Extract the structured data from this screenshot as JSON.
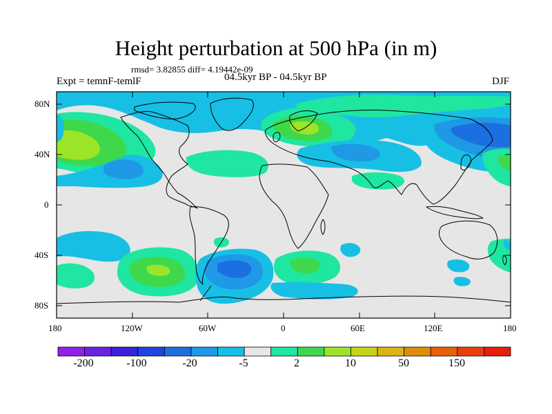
{
  "title": "Height perturbation at 500 hPa (in m)",
  "stats": "rmsd= 3.82855 diff= 4.19442e-09",
  "experiment": "Expt = temnF-temlF",
  "period": "04.5kyr BP - 04.5kyr BP",
  "season": "DJF",
  "y_ticks": [
    "80N",
    "40N",
    "0",
    "40S",
    "80S"
  ],
  "x_ticks": [
    "180",
    "120W",
    "60W",
    "0",
    "60E",
    "120E",
    "180"
  ],
  "colorbar": {
    "labels": [
      "-200",
      "-100",
      "-20",
      "-5",
      "2",
      "10",
      "50",
      "150"
    ],
    "colors": [
      "#8f22e8",
      "#6a22e0",
      "#3a22d8",
      "#1f44e0",
      "#1c6fe0",
      "#1f98e6",
      "#18bfe4",
      "#e6e6e6",
      "#1fe6a0",
      "#3ed84a",
      "#9ce428",
      "#c8d21a",
      "#d9b414",
      "#e08c0c",
      "#e6620a",
      "#e8400a",
      "#e81e0e"
    ]
  },
  "palette": {
    "land_line": "#000000",
    "neutral": "#e6e6e6",
    "light_blue": "#18bfe4",
    "blue": "#1f98e6",
    "dark_blue": "#1c6fe0",
    "green_light": "#1fe6a0",
    "green": "#3ed84a",
    "yellow_green": "#9ce428",
    "yellow": "#c8d21a"
  }
}
